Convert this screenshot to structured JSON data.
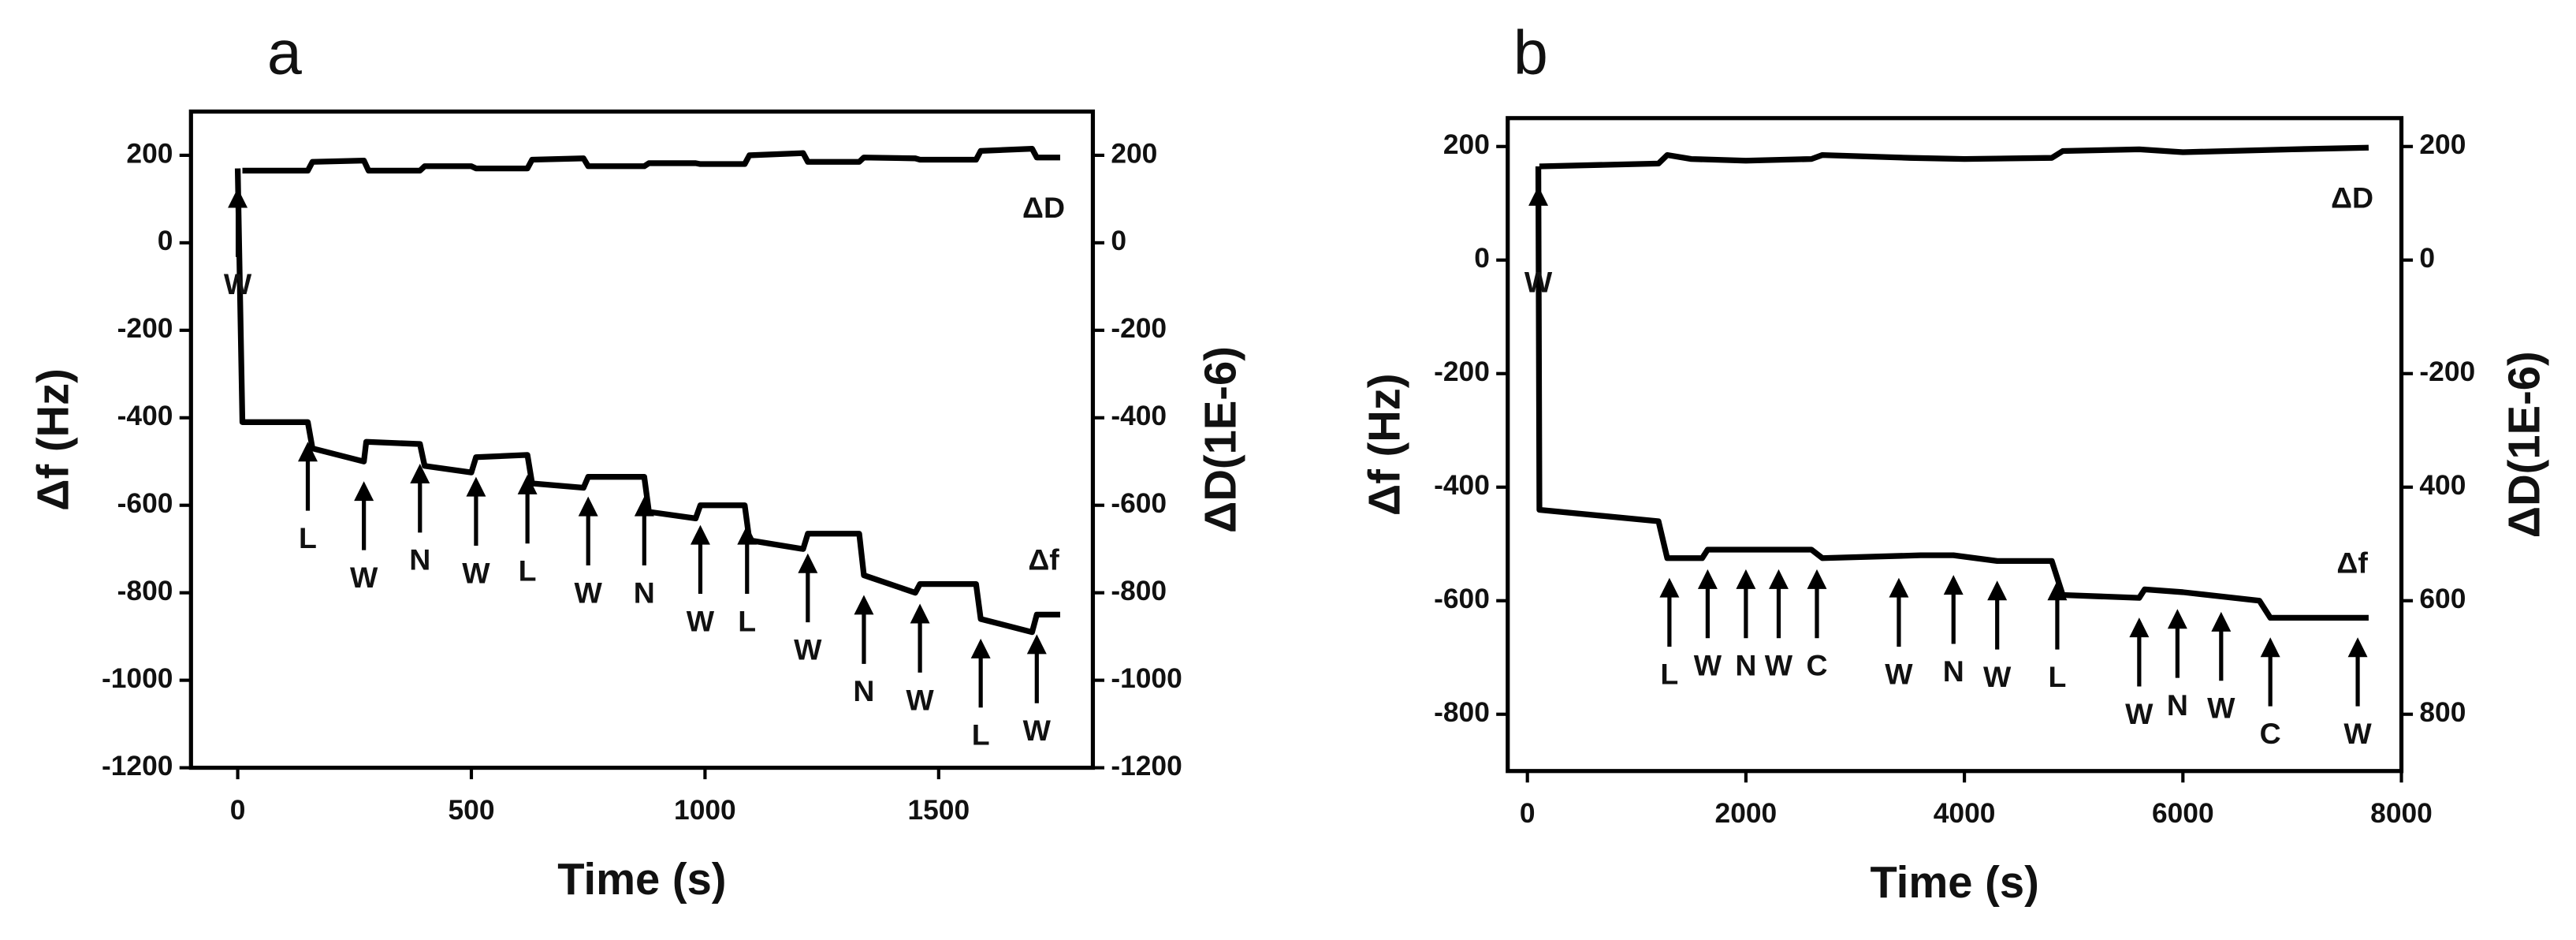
{
  "chart_data": [
    {
      "type": "line",
      "panel_label": "a",
      "xlabel": "Time (s)",
      "ylabel": "Δf (Hz)",
      "y2label": "ΔD(1E-6)",
      "xlim": [
        -100,
        1830
      ],
      "ylim": [
        -1200,
        300
      ],
      "y2lim": [
        -1200,
        300
      ],
      "xticks": [
        0,
        500,
        1000,
        1500
      ],
      "yticks": [
        200,
        0,
        -200,
        -400,
        -600,
        -800,
        -1000,
        -1200
      ],
      "y2ticks": [
        200,
        0,
        -200,
        -400,
        -600,
        -800,
        -1000,
        -1200
      ],
      "series": [
        {
          "name": "ΔD",
          "color": "#000000",
          "axis": "y2",
          "x": [
            10,
            150,
            160,
            270,
            280,
            390,
            400,
            500,
            510,
            620,
            630,
            740,
            750,
            870,
            880,
            980,
            990,
            1085,
            1095,
            1210,
            1220,
            1330,
            1340,
            1450,
            1460,
            1580,
            1590,
            1700,
            1710,
            1760
          ],
          "values": [
            165,
            165,
            185,
            188,
            165,
            165,
            175,
            175,
            170,
            170,
            190,
            193,
            175,
            175,
            182,
            182,
            180,
            180,
            200,
            205,
            185,
            185,
            195,
            193,
            190,
            190,
            210,
            215,
            195,
            195
          ]
        },
        {
          "name": "Δf",
          "color": "#000000",
          "x": [
            0,
            10,
            150,
            160,
            270,
            275,
            390,
            400,
            500,
            510,
            620,
            630,
            740,
            750,
            870,
            880,
            980,
            990,
            1085,
            1095,
            1210,
            1220,
            1330,
            1340,
            1450,
            1460,
            1580,
            1590,
            1700,
            1710,
            1760
          ],
          "values": [
            170,
            -410,
            -410,
            -470,
            -500,
            -455,
            -460,
            -510,
            -525,
            -490,
            -485,
            -550,
            -560,
            -535,
            -535,
            -615,
            -630,
            -600,
            -600,
            -680,
            -700,
            -665,
            -665,
            -760,
            -800,
            -780,
            -780,
            -860,
            -890,
            -850,
            -850
          ]
        }
      ],
      "annotations": [
        {
          "text": "W",
          "x": 0
        },
        {
          "text": "L",
          "x": 150
        },
        {
          "text": "W",
          "x": 270
        },
        {
          "text": "N",
          "x": 390
        },
        {
          "text": "W",
          "x": 510
        },
        {
          "text": "L",
          "x": 620
        },
        {
          "text": "W",
          "x": 750
        },
        {
          "text": "N",
          "x": 870
        },
        {
          "text": "W",
          "x": 990
        },
        {
          "text": "L",
          "x": 1090
        },
        {
          "text": "W",
          "x": 1220
        },
        {
          "text": "N",
          "x": 1340
        },
        {
          "text": "W",
          "x": 1460
        },
        {
          "text": "L",
          "x": 1590
        },
        {
          "text": "W",
          "x": 1710
        }
      ]
    },
    {
      "type": "line",
      "panel_label": "b",
      "xlabel": "Time (s)",
      "ylabel": "Δf (Hz)",
      "y2label": "ΔD(1E-6)",
      "xlim": [
        -180,
        8000
      ],
      "ylim": [
        -900,
        250
      ],
      "y2lim": [
        -900,
        250
      ],
      "xticks": [
        0,
        2000,
        4000,
        6000,
        8000
      ],
      "yticks": [
        200,
        0,
        -200,
        -400,
        -600,
        -800
      ],
      "y2ticks": [
        200,
        0,
        -200,
        {
          "value": -400,
          "label": "400"
        },
        {
          "value": -600,
          "label": "600"
        },
        {
          "value": -800,
          "label": "800"
        }
      ],
      "series": [
        {
          "name": "ΔD",
          "color": "#000000",
          "axis": "y2",
          "x": [
            110,
            1200,
            1280,
            1500,
            2000,
            2600,
            2700,
            3500,
            4000,
            4800,
            4900,
            5600,
            6000,
            7000,
            7700
          ],
          "values": [
            165,
            170,
            185,
            178,
            175,
            178,
            185,
            180,
            178,
            180,
            192,
            195,
            190,
            195,
            198
          ]
        },
        {
          "name": "Δf",
          "color": "#000000",
          "x": [
            100,
            110,
            1200,
            1280,
            1600,
            1650,
            2600,
            2700,
            3600,
            3900,
            4300,
            4800,
            4900,
            5600,
            5650,
            6000,
            6700,
            6800,
            7700
          ],
          "values": [
            165,
            -440,
            -460,
            -525,
            -525,
            -510,
            -510,
            -525,
            -520,
            -520,
            -530,
            -530,
            -590,
            -595,
            -580,
            -585,
            -600,
            -630,
            -630
          ]
        }
      ],
      "annotations": [
        {
          "text": "W",
          "x": 100
        },
        {
          "text": "L",
          "x": 1300
        },
        {
          "text": "W",
          "x": 1650
        },
        {
          "text": "N",
          "x": 2000
        },
        {
          "text": "W",
          "x": 2300
        },
        {
          "text": "C",
          "x": 2650
        },
        {
          "text": "W",
          "x": 3400
        },
        {
          "text": "N",
          "x": 3900
        },
        {
          "text": "W",
          "x": 4300
        },
        {
          "text": "L",
          "x": 4850
        },
        {
          "text": "W",
          "x": 5600
        },
        {
          "text": "N",
          "x": 5950
        },
        {
          "text": "W",
          "x": 6350
        },
        {
          "text": "C",
          "x": 6800
        },
        {
          "text": "W",
          "x": 7600
        }
      ]
    }
  ]
}
